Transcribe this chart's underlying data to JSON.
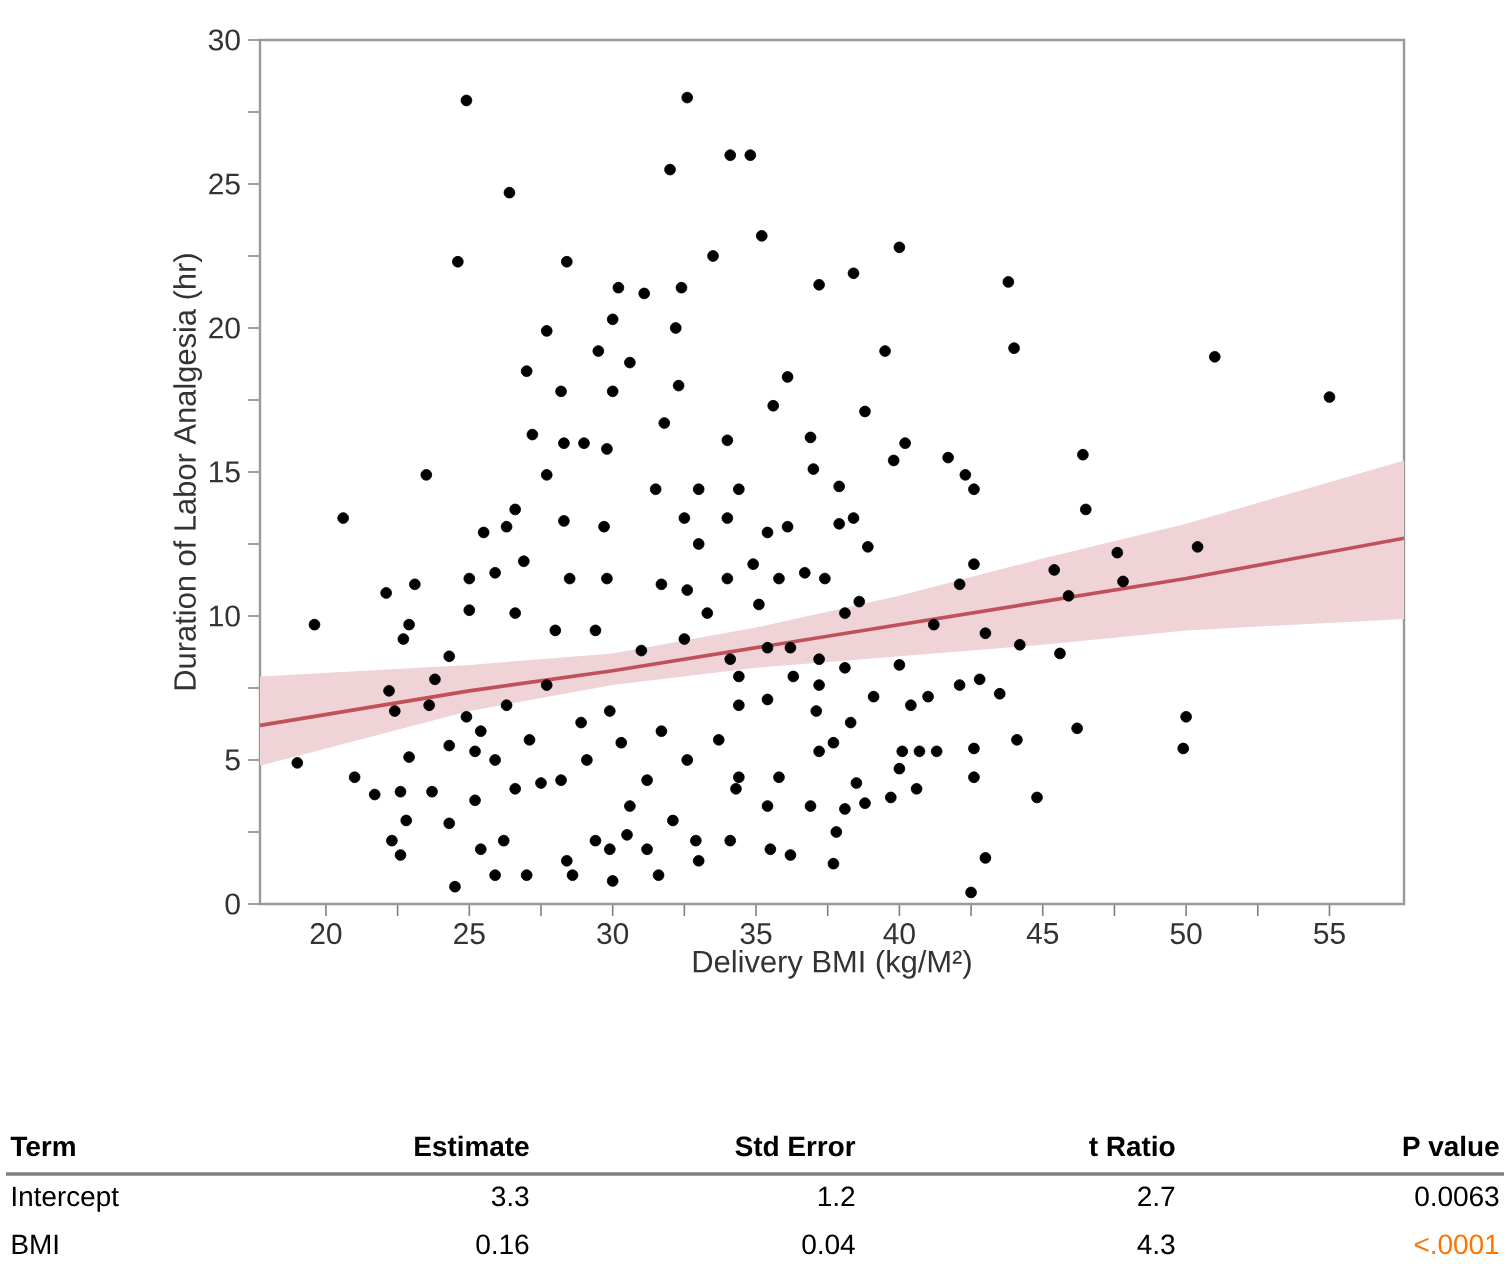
{
  "chart_data": {
    "type": "scatter",
    "xlabel": "Delivery BMI (kg/M²)",
    "ylabel": "Duration of Labor Analgesia (hr)",
    "xlim": [
      17.7,
      57.6
    ],
    "ylim": [
      0,
      30
    ],
    "xticks": [
      20,
      {
        "value": 22.5,
        "label": null
      },
      25,
      {
        "value": 27.5,
        "label": null
      },
      30,
      {
        "value": 32.5,
        "label": null
      },
      35,
      {
        "value": 37.5,
        "label": null
      },
      40,
      {
        "value": 42.5,
        "label": null
      },
      45,
      {
        "value": 47.5,
        "label": null
      },
      50,
      {
        "value": 52.5,
        "label": null
      },
      55
    ],
    "yticks": [
      0,
      {
        "value": 2.5,
        "label": null
      },
      5,
      {
        "value": 7.5,
        "label": null
      },
      10,
      {
        "value": 12.5,
        "label": null
      },
      15,
      {
        "value": 17.5,
        "label": null
      },
      20,
      {
        "value": 22.5,
        "label": null
      },
      25,
      {
        "value": 27.5,
        "label": null
      },
      30
    ],
    "series": [
      {
        "marker": "circle",
        "color": "#000000",
        "x": [
          24.9,
          26.4,
          24.6,
          28.4,
          27.7,
          27.0,
          28.2,
          29.5,
          27.2,
          28.3,
          32.6,
          32.0,
          34.1,
          34.8,
          35.2,
          33.5,
          40.0,
          38.4,
          37.2,
          43.8,
          44.0,
          39.5,
          51.0,
          55.0,
          30.2,
          31.1,
          32.4,
          30.0,
          32.2,
          30.6,
          36.1,
          32.3,
          35.6,
          38.8,
          30.0,
          31.8,
          34.0,
          36.9,
          40.2,
          46.4,
          41.7,
          46.5,
          42.6,
          42.3,
          39.8,
          42.6,
          42.1,
          41.2,
          43.0,
          44.2,
          45.4,
          45.9,
          47.6,
          47.8,
          50.4,
          45.6,
          40.0,
          42.1,
          42.8,
          43.5,
          44.1,
          46.2,
          50.0,
          49.9,
          42.6,
          42.6,
          44.8,
          41.3,
          40.7,
          40.1,
          40.4,
          41.0,
          43.0,
          42.5,
          37.7,
          37.8,
          38.1,
          38.8,
          38.5,
          39.7,
          40.6,
          40.0,
          36.9,
          36.2,
          35.5,
          33.0,
          34.1,
          32.9,
          31.6,
          30.0,
          31.2,
          29.9,
          35.4,
          34.4,
          35.8,
          37.2,
          37.7,
          38.3,
          39.1,
          37.1,
          37.2,
          37.2,
          38.1,
          38.1,
          36.3,
          36.2,
          35.4,
          35.4,
          34.4,
          34.4,
          35.1,
          35.8,
          36.7,
          37.4,
          38.6,
          38.4,
          38.9,
          37.9,
          37.0,
          37.9,
          35.4,
          36.1,
          34.9,
          34.0,
          34.0,
          34.4,
          32.5,
          33.0,
          33.0,
          32.6,
          33.3,
          34.1,
          23.5,
          20.6,
          19.6,
          19.0,
          21.0,
          21.7,
          22.1,
          23.1,
          22.2,
          22.4,
          22.9,
          22.7,
          22.9,
          22.6,
          22.3,
          22.6,
          22.8,
          23.7,
          24.3,
          24.5,
          24.3,
          25.2,
          25.4,
          25.9,
          26.2,
          27.0,
          28.4,
          28.6,
          23.6,
          23.8,
          24.3,
          25.0,
          25.0,
          25.5,
          25.9,
          26.3,
          26.6,
          26.9,
          26.6,
          24.9,
          25.2,
          25.4,
          25.9,
          26.3,
          26.6,
          27.1,
          27.5,
          27.7,
          28.0,
          28.3,
          28.5,
          29.4,
          29.1,
          28.9,
          28.2,
          29.4,
          29.0,
          27.7,
          29.8,
          29.7,
          29.8,
          29.9,
          30.3,
          30.6,
          31.2,
          31.7,
          31.0,
          31.7,
          31.5,
          32.5,
          32.6,
          33.7,
          34.3,
          32.1,
          30.5
        ],
        "values": [
          27.9,
          24.7,
          22.3,
          22.3,
          19.9,
          18.5,
          17.8,
          19.2,
          16.3,
          16.0,
          28.0,
          25.5,
          26.0,
          26.0,
          23.2,
          22.5,
          22.8,
          21.9,
          21.5,
          21.6,
          19.3,
          19.2,
          19.0,
          17.6,
          21.4,
          21.2,
          21.4,
          20.3,
          20.0,
          18.8,
          18.3,
          18.0,
          17.3,
          17.1,
          17.8,
          16.7,
          16.1,
          16.2,
          16.0,
          15.6,
          15.5,
          13.7,
          14.4,
          14.9,
          15.4,
          11.8,
          11.1,
          9.7,
          9.4,
          9.0,
          11.6,
          10.7,
          12.2,
          11.2,
          12.4,
          8.7,
          8.3,
          7.6,
          7.8,
          7.3,
          5.7,
          6.1,
          6.5,
          5.4,
          5.4,
          4.4,
          3.7,
          5.3,
          5.3,
          5.3,
          6.9,
          7.2,
          1.6,
          0.4,
          1.4,
          2.5,
          3.3,
          3.5,
          4.2,
          3.7,
          4.0,
          4.7,
          3.4,
          1.7,
          1.9,
          1.5,
          2.2,
          2.2,
          1.0,
          0.8,
          1.9,
          1.9,
          3.4,
          4.4,
          4.4,
          5.3,
          5.6,
          6.3,
          7.2,
          6.7,
          7.6,
          8.5,
          8.2,
          10.1,
          7.9,
          8.9,
          8.9,
          7.1,
          6.9,
          7.9,
          10.4,
          11.3,
          11.5,
          11.3,
          10.5,
          13.4,
          12.4,
          14.5,
          15.1,
          13.2,
          12.9,
          13.1,
          11.8,
          11.3,
          13.4,
          14.4,
          13.4,
          14.4,
          12.5,
          10.9,
          10.1,
          8.5,
          14.9,
          13.4,
          9.7,
          4.9,
          4.4,
          3.8,
          10.8,
          11.1,
          7.4,
          6.7,
          9.7,
          9.2,
          5.1,
          3.9,
          2.2,
          1.7,
          2.9,
          3.9,
          5.5,
          0.6,
          2.8,
          3.6,
          1.9,
          1.0,
          2.2,
          1.0,
          1.5,
          1.0,
          6.9,
          7.8,
          8.6,
          10.2,
          11.3,
          12.9,
          11.5,
          13.1,
          13.7,
          11.9,
          10.1,
          6.5,
          5.3,
          6.0,
          5.0,
          6.9,
          4.0,
          5.7,
          4.2,
          7.6,
          9.5,
          13.3,
          11.3,
          2.2,
          5.0,
          6.3,
          4.3,
          9.5,
          16.0,
          14.9,
          15.8,
          13.1,
          11.3,
          6.7,
          5.6,
          3.4,
          4.3,
          6.0,
          8.8,
          11.1,
          14.4,
          9.2,
          5.0,
          5.7,
          4.0,
          2.9,
          2.4
        ]
      },
      {
        "type": "line",
        "marker": "none",
        "color": "#c0505a",
        "x": [
          17.7,
          25,
          30,
          35,
          40,
          45,
          50,
          57.6
        ],
        "values": [
          6.2,
          7.4,
          8.1,
          8.9,
          9.7,
          10.5,
          11.3,
          12.7
        ],
        "lower": [
          4.8,
          6.7,
          7.6,
          8.2,
          8.6,
          9.0,
          9.5,
          9.9
        ],
        "upper": [
          7.9,
          8.3,
          8.7,
          9.6,
          10.7,
          12.0,
          13.2,
          15.4
        ]
      }
    ],
    "annotations": [
      "Term",
      "Estimate",
      "Std Error",
      "t Ratio",
      "P value",
      "Intercept",
      "3.3",
      "1.2",
      "2.7",
      "0.0063",
      "BMI",
      "0.16",
      "0.04",
      "4.3",
      "<.0001"
    ]
  }
}
